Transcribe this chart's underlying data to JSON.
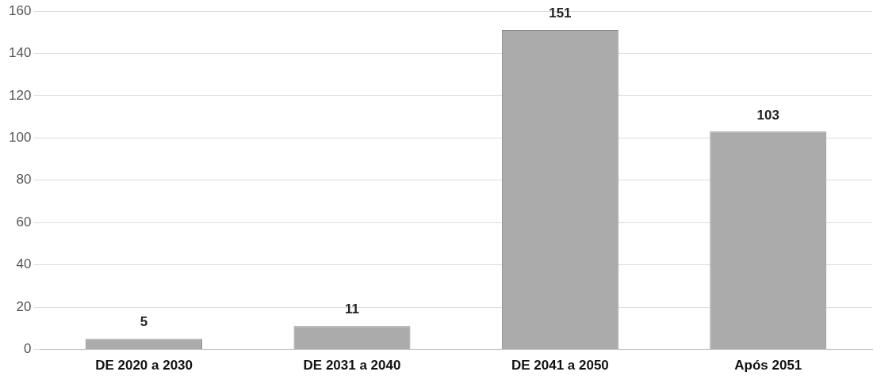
{
  "chart_data": {
    "type": "bar",
    "categories": [
      "DE 2020 a 2030",
      "DE 2031 a 2040",
      "DE 2041 a 2050",
      "Após 2051"
    ],
    "values": [
      5,
      11,
      151,
      103
    ],
    "color": "#ababab",
    "data_labels": true,
    "ylim": [
      0,
      160
    ],
    "yticks": [
      0,
      20,
      40,
      60,
      80,
      100,
      120,
      140,
      160
    ],
    "grid": "y",
    "legend": false
  }
}
